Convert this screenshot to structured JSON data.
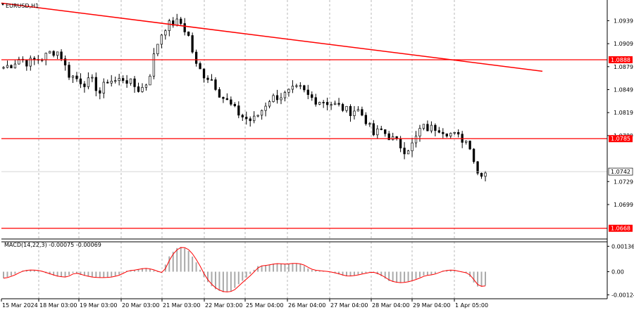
{
  "symbol_label": "EURUSD,H1",
  "colors": {
    "background": "#ffffff",
    "grid": "#9a9a9a",
    "candle": "#000000",
    "level_line": "#ff0000",
    "trend_line": "#ff0000",
    "macd_signal": "#ff0000",
    "macd_hist": "#a9a9a9",
    "price_box": "#ffffff"
  },
  "chart_data": [
    {
      "type": "candlestick",
      "title": "EURUSD,H1",
      "x_tick_labels": [
        "15 Mar 2024",
        "18 Mar 03:00",
        "19 Mar 03:00",
        "20 Mar 03:00",
        "21 Mar 03:00",
        "22 Mar 03:00",
        "25 Mar 04:00",
        "26 Mar 04:00",
        "27 Mar 04:00",
        "28 Mar 04:00",
        "29 Mar 04:00",
        "1 Apr 05:00"
      ],
      "y_tick_labels": [
        "1.0939",
        "1.0909",
        "1.0879",
        "1.0849",
        "1.0819",
        "1.0789",
        "1.0729",
        "1.0699"
      ],
      "ylim": [
        1.0654,
        1.0966
      ],
      "horizontal_levels": [
        "1.0888",
        "1.0785",
        "1.0668"
      ],
      "current_price": "1.0742",
      "trend_line": {
        "start_price": 1.0962,
        "end_price": 1.0873
      },
      "close_path": [
        1.0878,
        1.0882,
        1.089,
        1.0884,
        1.0888,
        1.0891,
        1.0899,
        1.0898,
        1.087,
        1.0864,
        1.0858,
        1.086,
        1.0845,
        1.0862,
        1.086,
        1.0864,
        1.0856,
        1.0848,
        1.086,
        1.0905,
        1.093,
        1.0936,
        1.0937,
        1.092,
        1.088,
        1.0868,
        1.0862,
        1.0842,
        1.0832,
        1.082,
        1.0812,
        1.0808,
        1.082,
        1.0836,
        1.084,
        1.0842,
        1.0848,
        1.085,
        1.084,
        1.0835,
        1.0834,
        1.083,
        1.0826,
        1.082,
        1.0824,
        1.0812,
        1.079,
        1.0796,
        1.0788,
        1.078,
        1.077,
        1.0778,
        1.08,
        1.0798,
        1.08,
        1.0795,
        1.079,
        1.0785,
        1.078,
        1.074,
        1.0742
      ]
    },
    {
      "type": "bar",
      "title": "MACD(14,22,3) -0.00075 -0.00069",
      "y_tick_labels": [
        "0.00136",
        "0.00",
        "-0.00124"
      ],
      "ylim": [
        -0.00145,
        0.0016
      ],
      "current_values": [
        "-0.00075",
        "-0.00069"
      ],
      "values_path": [
        -0.00035,
        -0.0002,
        5e-05,
        0.0001,
        5e-05,
        -0.0001,
        -0.00025,
        -0.0003,
        -5e-05,
        -0.0002,
        -0.0003,
        -0.00032,
        -0.0003,
        -0.0002,
        5e-05,
        0.0001,
        0.0002,
        0.0001,
        -0.0001,
        0.0009,
        0.00136,
        0.0012,
        0.0005,
        -0.0004,
        -0.0009,
        -0.0011,
        -0.00105,
        -0.0006,
        -0.0002,
        0.0003,
        0.00035,
        0.00045,
        0.0004,
        0.00045,
        0.0004,
        0.0001,
        5e-05,
        0.0,
        -0.0001,
        -0.00025,
        -0.0002,
        -0.0001,
        0.0,
        -0.0002,
        -0.0005,
        -0.0006,
        -0.00055,
        -0.0004,
        -0.0002,
        -0.00015,
        5e-05,
        0.0001,
        0.0,
        -0.0001,
        -0.0008,
        -0.00075
      ]
    }
  ]
}
